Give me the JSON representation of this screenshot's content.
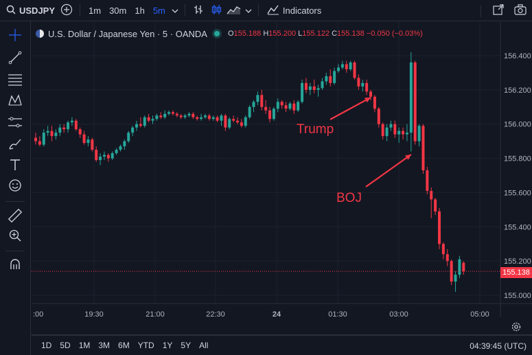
{
  "toolbar": {
    "symbol": "USDJPY",
    "intervals": [
      "1m",
      "30m",
      "1h",
      "5m"
    ],
    "active_interval": "5m",
    "indicators_label": "Indicators"
  },
  "legend": {
    "title": "U.S. Dollar / Japanese Yen · 5 · OANDA",
    "o_label": "O",
    "o_value": "155.188",
    "h_label": "H",
    "h_value": "155.200",
    "l_label": "L",
    "l_value": "155.122",
    "c_label": "C",
    "c_value": "155.138",
    "change": "−0.050 (−0.03%)"
  },
  "annotations": {
    "trump": "Trump",
    "boj": "BOJ"
  },
  "price_label": "155.138",
  "bottombar": {
    "ranges": [
      "1D",
      "5D",
      "1M",
      "3M",
      "6M",
      "YTD",
      "1Y",
      "5Y",
      "All"
    ],
    "clock": "04:39:45 (UTC)"
  },
  "colors": {
    "up": "#26a69a",
    "down": "#f23645",
    "bg": "#131722",
    "grid": "#1e222d",
    "accent": "#2962ff"
  },
  "icons": [
    "search-icon",
    "plus-circle-icon",
    "chevron-down-icon",
    "bar-chart-type-icon",
    "candles-icon",
    "area-chart-icon",
    "indicators-icon",
    "fullscreen-icon",
    "camera-icon",
    "crosshair-icon",
    "trend-line-icon",
    "fib-icon",
    "pattern-icon",
    "projection-icon",
    "brush-icon",
    "text-icon",
    "emoji-icon",
    "ruler-icon",
    "zoom-in-icon",
    "magnet-icon",
    "settings-icon"
  ],
  "chart_data": {
    "type": "candlestick",
    "y_ticks": [
      "156.400",
      "156.200",
      "156.000",
      "155.800",
      "155.600",
      "155.400",
      "155.200",
      "155.000"
    ],
    "x_ticks": [
      ":00",
      "19:30",
      "21:00",
      "22:30",
      "24",
      "01:30",
      "03:00",
      "05:00"
    ],
    "ylim": [
      154.95,
      156.47
    ],
    "candles": [
      [
        155.92,
        155.95,
        155.88,
        155.9
      ],
      [
        155.9,
        155.93,
        155.87,
        155.88
      ],
      [
        155.88,
        155.97,
        155.87,
        155.95
      ],
      [
        155.95,
        155.99,
        155.93,
        155.96
      ],
      [
        155.96,
        155.99,
        155.9,
        155.93
      ],
      [
        155.93,
        155.97,
        155.91,
        155.95
      ],
      [
        155.95,
        156.0,
        155.93,
        155.98
      ],
      [
        155.98,
        156.0,
        155.95,
        155.97
      ],
      [
        155.97,
        156.02,
        155.95,
        156.01
      ],
      [
        156.01,
        156.04,
        155.99,
        156.02
      ],
      [
        156.02,
        156.03,
        155.96,
        155.97
      ],
      [
        155.97,
        155.98,
        155.92,
        155.94
      ],
      [
        155.94,
        155.96,
        155.88,
        155.89
      ],
      [
        155.89,
        155.93,
        155.87,
        155.91
      ],
      [
        155.91,
        155.92,
        155.84,
        155.85
      ],
      [
        155.85,
        155.87,
        155.78,
        155.79
      ],
      [
        155.79,
        155.83,
        155.76,
        155.81
      ],
      [
        155.81,
        155.84,
        155.79,
        155.82
      ],
      [
        155.82,
        155.83,
        155.78,
        155.8
      ],
      [
        155.8,
        155.84,
        155.79,
        155.83
      ],
      [
        155.83,
        155.86,
        155.82,
        155.85
      ],
      [
        155.85,
        155.88,
        155.84,
        155.87
      ],
      [
        155.87,
        155.91,
        155.85,
        155.9
      ],
      [
        155.9,
        155.96,
        155.89,
        155.95
      ],
      [
        155.95,
        155.99,
        155.93,
        155.98
      ],
      [
        155.98,
        156.02,
        155.96,
        156.0
      ],
      [
        156.0,
        156.04,
        155.98,
        155.99
      ],
      [
        155.99,
        156.05,
        155.98,
        156.04
      ],
      [
        156.04,
        156.06,
        156.01,
        156.02
      ],
      [
        156.02,
        156.05,
        156.0,
        156.03
      ],
      [
        156.03,
        156.06,
        156.02,
        156.05
      ],
      [
        156.05,
        156.07,
        156.03,
        156.04
      ],
      [
        156.04,
        156.08,
        156.03,
        156.06
      ],
      [
        156.06,
        156.08,
        156.05,
        156.07
      ],
      [
        156.07,
        156.08,
        156.05,
        156.06
      ],
      [
        156.06,
        156.07,
        156.04,
        156.05
      ],
      [
        156.05,
        156.06,
        156.03,
        156.04
      ],
      [
        156.04,
        156.06,
        156.03,
        156.05
      ],
      [
        156.05,
        156.07,
        156.04,
        156.06
      ],
      [
        156.06,
        156.07,
        156.03,
        156.04
      ],
      [
        156.04,
        156.05,
        156.02,
        156.03
      ],
      [
        156.03,
        156.06,
        156.02,
        156.04
      ],
      [
        156.04,
        156.06,
        156.03,
        156.05
      ],
      [
        156.05,
        156.06,
        156.02,
        156.03
      ],
      [
        156.03,
        156.05,
        156.02,
        156.04
      ],
      [
        156.04,
        156.05,
        156.01,
        156.02
      ],
      [
        156.02,
        156.06,
        155.99,
        156.05
      ],
      [
        156.05,
        156.06,
        155.96,
        155.98
      ],
      [
        155.98,
        156.04,
        155.97,
        156.03
      ],
      [
        156.03,
        156.05,
        156.01,
        156.02
      ],
      [
        156.02,
        156.04,
        156.0,
        156.01
      ],
      [
        156.01,
        156.03,
        155.98,
        155.99
      ],
      [
        155.99,
        156.05,
        155.98,
        156.04
      ],
      [
        156.04,
        156.11,
        156.03,
        156.1
      ],
      [
        156.1,
        156.14,
        156.07,
        156.13
      ],
      [
        156.13,
        156.19,
        156.11,
        156.17
      ],
      [
        156.17,
        156.2,
        156.08,
        156.1
      ],
      [
        156.1,
        156.14,
        156.06,
        156.08
      ],
      [
        156.08,
        156.1,
        156.01,
        156.03
      ],
      [
        156.03,
        156.1,
        156.02,
        156.09
      ],
      [
        156.09,
        156.15,
        156.07,
        156.13
      ],
      [
        156.13,
        156.14,
        156.09,
        156.11
      ],
      [
        156.11,
        156.13,
        156.07,
        156.09
      ],
      [
        156.09,
        156.13,
        156.08,
        156.12
      ],
      [
        156.12,
        156.14,
        156.06,
        156.08
      ],
      [
        156.08,
        156.14,
        156.07,
        156.13
      ],
      [
        156.13,
        156.26,
        156.12,
        156.24
      ],
      [
        156.24,
        156.27,
        156.18,
        156.2
      ],
      [
        156.2,
        156.24,
        156.17,
        156.22
      ],
      [
        156.22,
        156.26,
        156.18,
        156.2
      ],
      [
        156.2,
        156.23,
        156.16,
        156.21
      ],
      [
        156.21,
        156.27,
        156.2,
        156.25
      ],
      [
        156.25,
        156.3,
        156.23,
        156.28
      ],
      [
        156.28,
        156.32,
        156.22,
        156.24
      ],
      [
        156.24,
        156.33,
        156.23,
        156.31
      ],
      [
        156.31,
        156.35,
        156.3,
        156.33
      ],
      [
        156.33,
        156.37,
        156.32,
        156.35
      ],
      [
        156.35,
        156.37,
        156.3,
        156.32
      ],
      [
        156.32,
        156.37,
        156.31,
        156.36
      ],
      [
        156.36,
        156.37,
        156.26,
        156.27
      ],
      [
        156.27,
        156.29,
        156.2,
        156.22
      ],
      [
        156.22,
        156.26,
        156.19,
        156.24
      ],
      [
        156.24,
        156.26,
        156.17,
        156.19
      ],
      [
        156.19,
        156.2,
        156.14,
        156.16
      ],
      [
        156.16,
        156.17,
        156.07,
        156.09
      ],
      [
        156.09,
        156.1,
        155.98,
        156.0
      ],
      [
        156.0,
        156.01,
        155.91,
        155.93
      ],
      [
        155.93,
        156.0,
        155.9,
        155.98
      ],
      [
        155.98,
        156.02,
        155.96,
        156.0
      ],
      [
        156.0,
        156.02,
        155.92,
        155.94
      ],
      [
        155.94,
        155.98,
        155.89,
        155.96
      ],
      [
        155.96,
        155.98,
        155.91,
        155.94
      ],
      [
        155.94,
        156.0,
        155.9,
        155.95
      ],
      [
        155.95,
        156.42,
        155.84,
        156.36
      ],
      [
        156.36,
        156.37,
        155.88,
        155.9
      ],
      [
        155.9,
        156.0,
        155.87,
        155.99
      ],
      [
        155.99,
        156.0,
        155.71,
        155.73
      ],
      [
        155.73,
        155.75,
        155.59,
        155.61
      ],
      [
        155.61,
        155.63,
        155.45,
        155.56
      ],
      [
        155.56,
        155.57,
        155.47,
        155.49
      ],
      [
        155.49,
        155.51,
        155.27,
        155.3
      ],
      [
        155.3,
        155.31,
        155.21,
        155.24
      ],
      [
        155.24,
        155.27,
        155.17,
        155.2
      ],
      [
        155.2,
        155.21,
        155.06,
        155.08
      ],
      [
        155.08,
        155.14,
        155.02,
        155.12
      ],
      [
        155.12,
        155.23,
        155.1,
        155.21
      ],
      [
        155.19,
        155.2,
        155.12,
        155.14
      ]
    ]
  }
}
